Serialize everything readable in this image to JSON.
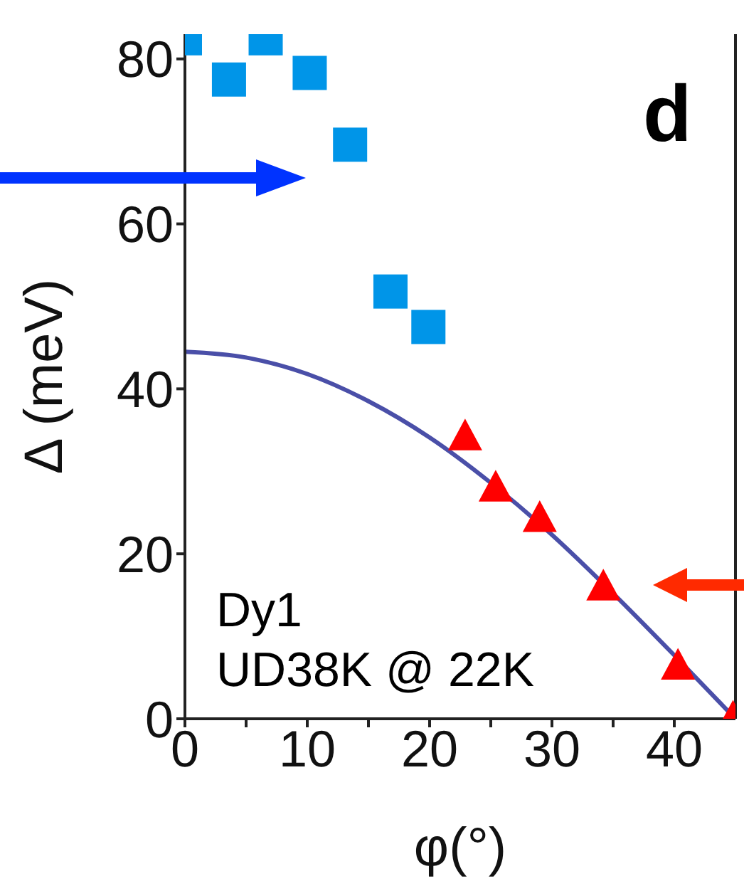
{
  "chart_data": {
    "type": "scatter",
    "xlabel": "φ(°)",
    "ylabel": "Δ (meV)",
    "xlim": [
      0,
      45
    ],
    "ylim": [
      0,
      83
    ],
    "xticks": [
      0,
      {
        "value": 5,
        "label": null
      },
      10,
      {
        "value": 15,
        "label": null
      },
      20,
      {
        "value": 25,
        "label": null
      },
      30,
      {
        "value": 35,
        "label": null
      },
      40
    ],
    "yticks": [
      0,
      20,
      40,
      60,
      80
    ],
    "annotations": [
      "d",
      "Dy1",
      "UD38K @ 22K"
    ],
    "series": [
      {
        "marker": "square",
        "color": "#0095e8",
        "x": [
          0,
          3.6,
          6.6,
          10.2,
          13.5,
          16.8,
          19.9
        ],
        "values": [
          82.5,
          77.5,
          82.5,
          78.3,
          69.6,
          51.8,
          47.5
        ]
      },
      {
        "marker": "triangle",
        "color": "#ff0000",
        "x": [
          22.9,
          25.4,
          29,
          34.2,
          40.3,
          44.8
        ],
        "values": [
          34.1,
          27.9,
          24.2,
          15.9,
          6.3,
          0
        ]
      },
      {
        "type": "line",
        "marker": "none",
        "line_style": "solid",
        "color": "#4a4fa8",
        "x": [
          0,
          5,
          10,
          15,
          20,
          25,
          30,
          35,
          40,
          45
        ],
        "values": [
          44.5,
          43.8,
          41.8,
          38.5,
          34.1,
          28.6,
          22.3,
          15.2,
          7.7,
          0
        ]
      }
    ]
  }
}
